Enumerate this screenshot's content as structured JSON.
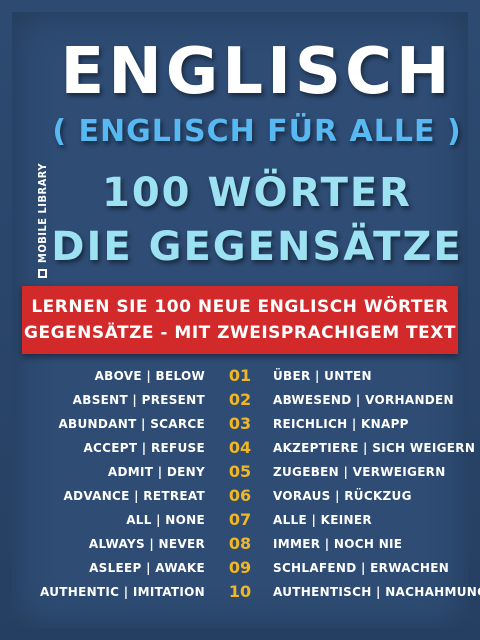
{
  "brand": {
    "publisher": "MOBILE LIBRARY"
  },
  "title": {
    "line1": "ENGLISCH",
    "line2": "( ENGLISCH FÜR ALLE )",
    "line3": "100 WÖRTER",
    "line4": "DIE GEGENSÄTZE"
  },
  "banner": {
    "line1": "LERNEN SIE 100 NEUE ENGLISCH WÖRTER",
    "line2": "GEGENSÄTZE - MIT ZWEISPRACHIGEM TEXT"
  },
  "words": [
    {
      "num": "01",
      "en": "ABOVE | BELOW",
      "de": "ÜBER | UNTEN"
    },
    {
      "num": "02",
      "en": "ABSENT | PRESENT",
      "de": "ABWESEND | VORHANDEN"
    },
    {
      "num": "03",
      "en": "ABUNDANT | SCARCE",
      "de": "REICHLICH | KNAPP"
    },
    {
      "num": "04",
      "en": "ACCEPT | REFUSE",
      "de": "AKZEPTIERE | SICH WEIGERN"
    },
    {
      "num": "05",
      "en": "ADMIT | DENY",
      "de": "ZUGEBEN | VERWEIGERN"
    },
    {
      "num": "06",
      "en": "ADVANCE | RETREAT",
      "de": "VORAUS | RÜCKZUG"
    },
    {
      "num": "07",
      "en": "ALL | NONE",
      "de": "ALLE | KEINER"
    },
    {
      "num": "08",
      "en": "ALWAYS | NEVER",
      "de": "IMMER | NOCH NIE"
    },
    {
      "num": "09",
      "en": "ASLEEP | AWAKE",
      "de": "SCHLAFEND | ERWACHEN"
    },
    {
      "num": "10",
      "en": "AUTHENTIC | IMITATION",
      "de": "AUTHENTISCH | NACHAHMUNG"
    }
  ],
  "colors": {
    "background": "#2e4c74",
    "banner": "#d22a2a",
    "subtitle": "#58b8f2",
    "heading_light": "#9de2f3",
    "number": "#f0b624"
  }
}
